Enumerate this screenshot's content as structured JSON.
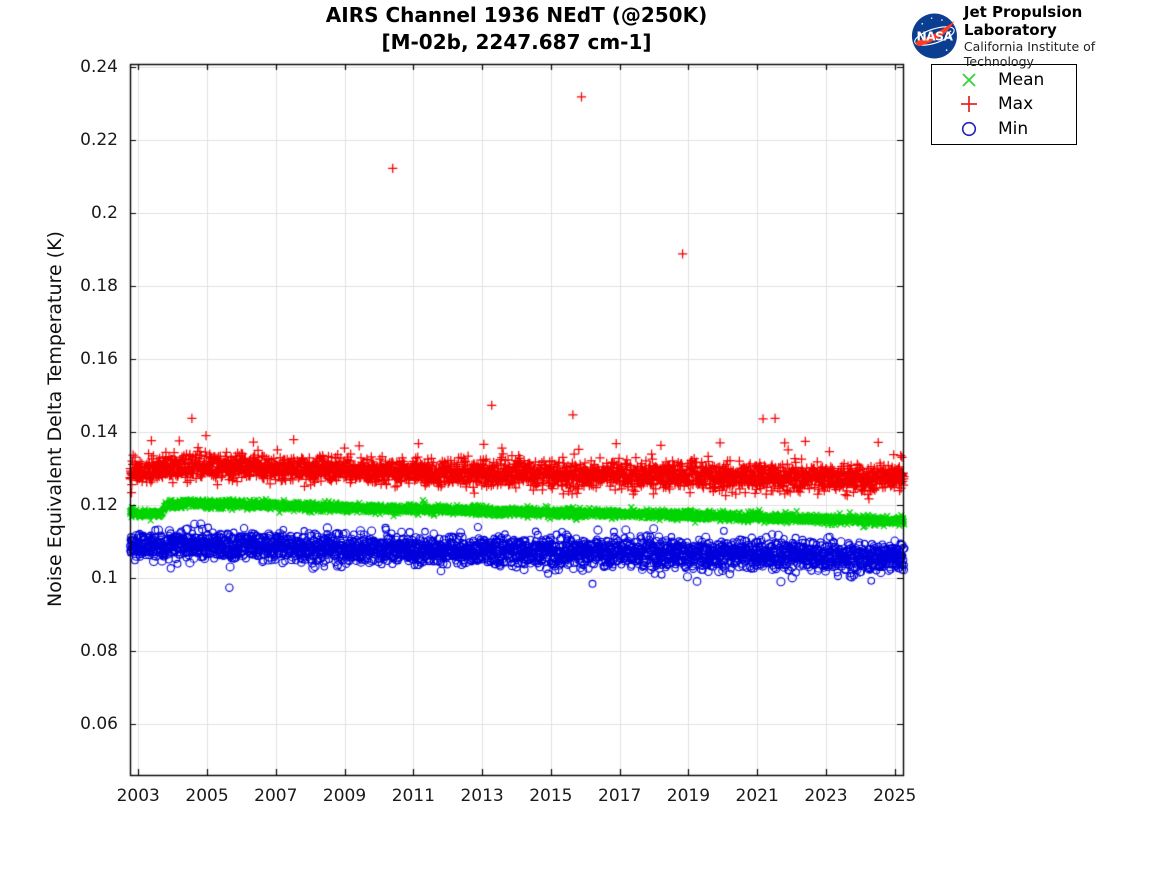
{
  "header": {
    "title_line1": "AIRS Channel 1936 NEdT (@250K)",
    "title_line2": "[M-02b, 2247.687 cm-1]",
    "logo": {
      "org": "NASA",
      "name": "Jet Propulsion Laboratory",
      "sub": "California Institute of Technology",
      "meatball_blue": "#0b3d91",
      "swoosh_red": "#fc3d21"
    }
  },
  "legend": {
    "position": "top-right-outside",
    "items": [
      {
        "label": "Mean",
        "marker": "x",
        "color": "#2fd42f"
      },
      {
        "label": "Max",
        "marker": "plus",
        "color": "#e32222"
      },
      {
        "label": "Min",
        "marker": "circle",
        "color": "#2222bb"
      }
    ]
  },
  "chart_data": {
    "type": "scatter",
    "title": "AIRS Channel 1936 NEdT (@250K) [M-02b, 2247.687 cm-1]",
    "xlabel": "",
    "ylabel": "Noise Equivalent Delta Temperature (K)",
    "xlim": [
      2002.76,
      2025.24
    ],
    "ylim": [
      0.046,
      0.2408
    ],
    "grid": true,
    "grid_color": "#e0e0e0",
    "frame_color": "#000000",
    "xticks": {
      "values": [
        2003,
        2005,
        2007,
        2009,
        2011,
        2013,
        2015,
        2017,
        2019,
        2021,
        2023,
        2025
      ],
      "labels": [
        "2003",
        "2005",
        "2007",
        "2009",
        "2011",
        "2013",
        "2015",
        "2017",
        "2019",
        "2021",
        "2023",
        "2025"
      ]
    },
    "yticks": {
      "values": [
        0.06,
        0.08,
        0.1,
        0.12,
        0.14,
        0.16,
        0.18,
        0.2,
        0.22,
        0.24
      ],
      "labels": [
        "0.06",
        "0.08",
        "0.1",
        "0.12",
        "0.14",
        "0.16",
        "0.18",
        "0.2",
        "0.22",
        "0.24"
      ]
    },
    "x_data_range": [
      2002.76,
      2025.27
    ],
    "n_points_per_series": 3000,
    "random_seed": 42,
    "series": [
      {
        "name": "Max",
        "marker": "plus",
        "color": "#f50000",
        "sigma": 0.0018,
        "tail": {
          "prob": 0.01,
          "dir": 1,
          "base": 0.003,
          "scale": 0.0018
        },
        "trend": [
          [
            2002.76,
            0.1292
          ],
          [
            2004.3,
            0.1306
          ],
          [
            2006.0,
            0.1302
          ],
          [
            2008.0,
            0.1296
          ],
          [
            2010.0,
            0.1291
          ],
          [
            2012.0,
            0.1287
          ],
          [
            2014.0,
            0.1284
          ],
          [
            2016.0,
            0.1281
          ],
          [
            2018.0,
            0.1281
          ],
          [
            2020.0,
            0.1279
          ],
          [
            2022.0,
            0.1276
          ],
          [
            2024.0,
            0.1272
          ],
          [
            2025.27,
            0.1274
          ]
        ],
        "outliers": [
          [
            2004.56,
            0.1437
          ],
          [
            2010.4,
            0.2122
          ],
          [
            2013.28,
            0.1473
          ],
          [
            2015.64,
            0.1447
          ],
          [
            2015.89,
            0.2318
          ],
          [
            2018.83,
            0.1888
          ],
          [
            2021.17,
            0.1436
          ],
          [
            2021.52,
            0.1437
          ],
          [
            2004.97,
            0.139
          ],
          [
            2006.35,
            0.1372
          ],
          [
            2007.52,
            0.1379
          ],
          [
            2011.15,
            0.1368
          ],
          [
            2013.05,
            0.1366
          ],
          [
            2016.9,
            0.1368
          ],
          [
            2018.2,
            0.1363
          ],
          [
            2019.92,
            0.137
          ],
          [
            2021.8,
            0.137
          ],
          [
            2022.4,
            0.1374
          ],
          [
            2023.1,
            0.1346
          ],
          [
            2024.52,
            0.1371
          ]
        ]
      },
      {
        "name": "Mean",
        "marker": "x",
        "color": "#00d400",
        "sigma": 0.0006,
        "tail": null,
        "trend": [
          [
            2002.76,
            0.1183
          ],
          [
            2003.0,
            0.1177
          ],
          [
            2003.72,
            0.1176
          ],
          [
            2003.8,
            0.1201
          ],
          [
            2004.6,
            0.1205
          ],
          [
            2006.0,
            0.1201
          ],
          [
            2008.0,
            0.1195
          ],
          [
            2010.0,
            0.119
          ],
          [
            2012.0,
            0.1186
          ],
          [
            2014.0,
            0.1181
          ],
          [
            2016.0,
            0.1178
          ],
          [
            2018.0,
            0.1174
          ],
          [
            2020.0,
            0.1169
          ],
          [
            2022.0,
            0.1163
          ],
          [
            2024.0,
            0.1158
          ],
          [
            2025.27,
            0.1156
          ]
        ],
        "outliers": [
          [
            2011.28,
            0.1213
          ],
          [
            2011.33,
            0.1207
          ]
        ]
      },
      {
        "name": "Min",
        "marker": "circle",
        "color": "#0000dd",
        "sigma": 0.002,
        "tail": {
          "prob": 0.013,
          "dir": -1,
          "base": 0.0025,
          "scale": 0.0015
        },
        "trend": [
          [
            2002.76,
            0.1083
          ],
          [
            2004.5,
            0.1091
          ],
          [
            2006.0,
            0.1087
          ],
          [
            2008.0,
            0.1082
          ],
          [
            2010.0,
            0.1079
          ],
          [
            2012.0,
            0.1076
          ],
          [
            2014.0,
            0.1073
          ],
          [
            2016.0,
            0.107
          ],
          [
            2018.0,
            0.1068
          ],
          [
            2020.0,
            0.1065
          ],
          [
            2022.0,
            0.1061
          ],
          [
            2024.0,
            0.1057
          ],
          [
            2025.27,
            0.1056
          ]
        ],
        "outliers": []
      }
    ]
  }
}
